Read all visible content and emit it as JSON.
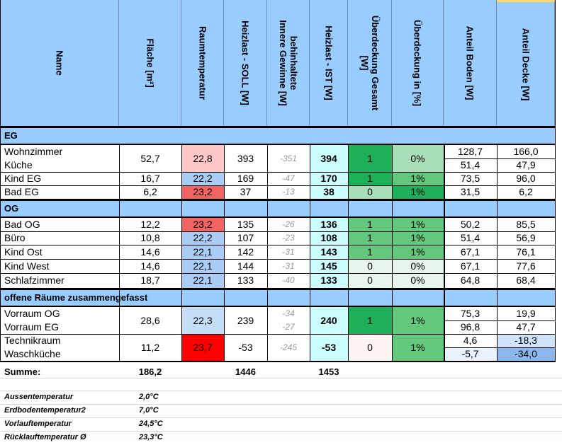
{
  "header": {
    "name": "Name",
    "flaeche": "Fläche [m²]",
    "raumtemperatur": "Raumtemperatur",
    "heizlast_soll": "Heizlast - SOLL [W]",
    "innere_gewinne_line1": "behinhaltete",
    "innere_gewinne_line2": "Innere Gewinne [W]",
    "heizlast_ist": "Heizlast - IST [W]",
    "ueberdeckung_gesamt_line1": "Überdeckung Gesamt",
    "ueberdeckung_gesamt_line2": "[W]",
    "ueberdeckung_prozent": "Überdeckung in [%]",
    "anteil_boden": "Anteil Boden [W]",
    "anteil_decke": "Anteil Decke [W]"
  },
  "sections": {
    "eg": "EG",
    "og": "OG",
    "offen": "offene Räume zusammengefasst"
  },
  "eg": {
    "wohnzimmer": {
      "name": "Wohnzimmer",
      "boden": "128,7",
      "decke": "166,0"
    },
    "kueche": {
      "name": "Küche",
      "boden": "51,4",
      "decke": "47,9"
    },
    "wk": {
      "flaeche": "52,7",
      "temp": "22,8",
      "soll": "393",
      "innere": "-351",
      "ist": "394",
      "ueb": "1",
      "pct": "0%"
    },
    "kind_eg": {
      "name": "Kind EG",
      "flaeche": "16,7",
      "temp": "22,2",
      "soll": "169",
      "innere": "-47",
      "ist": "170",
      "ueb": "1",
      "pct": "1%",
      "boden": "73,5",
      "decke": "96,0"
    },
    "bad_eg": {
      "name": "Bad EG",
      "flaeche": "6,2",
      "temp": "23,2",
      "soll": "37",
      "innere": "-13",
      "ist": "38",
      "ueb": "0",
      "pct": "1%",
      "boden": "31,5",
      "decke": "6,2"
    }
  },
  "og": [
    {
      "name": "Bad OG",
      "flaeche": "12,2",
      "temp": "23,2",
      "soll": "135",
      "innere": "-26",
      "ist": "136",
      "ueb": "1",
      "pct": "1%",
      "boden": "50,2",
      "decke": "85,5"
    },
    {
      "name": "Büro",
      "flaeche": "10,8",
      "temp": "22,2",
      "soll": "107",
      "innere": "-23",
      "ist": "108",
      "ueb": "1",
      "pct": "1%",
      "boden": "51,4",
      "decke": "56,9"
    },
    {
      "name": "Kind Ost",
      "flaeche": "14,6",
      "temp": "22,1",
      "soll": "142",
      "innere": "-31",
      "ist": "143",
      "ueb": "1",
      "pct": "1%",
      "boden": "67,1",
      "decke": "76,1"
    },
    {
      "name": "Kind West",
      "flaeche": "14,6",
      "temp": "22,1",
      "soll": "144",
      "innere": "-31",
      "ist": "145",
      "ueb": "0",
      "pct": "0%",
      "boden": "67,1",
      "decke": "77,6"
    },
    {
      "name": "Schlafzimmer",
      "flaeche": "18,7",
      "temp": "22,1",
      "soll": "133",
      "innere": "-40",
      "ist": "133",
      "ueb": "0",
      "pct": "0%",
      "boden": "64,8",
      "decke": "68,4"
    }
  ],
  "offen": {
    "vorraum_og": {
      "name": "Vorraum OG",
      "innere": "-34",
      "boden": "75,3",
      "decke": "19,9"
    },
    "vorraum_eg": {
      "name": "Vorraum EG",
      "innere": "-27",
      "boden": "96,8",
      "decke": "47,7"
    },
    "vorraum": {
      "flaeche": "28,6",
      "temp": "22,3",
      "soll": "239",
      "ist": "240",
      "ueb": "1",
      "pct": "1%"
    },
    "technikraum": {
      "name": "Technikraum",
      "boden": "4,6",
      "decke": "-18,3"
    },
    "waschkueche": {
      "name": "Waschküche",
      "boden": "-5,7",
      "decke": "-34,0"
    },
    "tw": {
      "flaeche": "11,2",
      "temp": "23,7",
      "soll": "-53",
      "innere": "-245",
      "ist": "-53",
      "ueb": "0",
      "pct": "1%"
    }
  },
  "summe": {
    "label": "Summe:",
    "flaeche": "186,2",
    "soll": "1446",
    "ist": "1453"
  },
  "footer": [
    {
      "label": "Aussentemperatur",
      "value": "2,0°C"
    },
    {
      "label": "Erdbodentemperatur2",
      "value": "7,0°C"
    },
    {
      "label": "Vorlauftemperatur",
      "value": "24,5°C"
    },
    {
      "label": "Rücklauftemperatur Ø",
      "value": "23,3°C"
    }
  ],
  "colors": {
    "header_blue": "#99ccff",
    "temp_red_strong": "#ff0000",
    "temp_red": "#f26464",
    "temp_pink": "#ffc7c7",
    "temp_blue": "#a9cdf5",
    "temp_blue_light": "#c5def8",
    "ist_cyan": "#ccffff",
    "green_strong": "#1db058",
    "green_mid": "#63c77c",
    "green_light": "#a9dfb8",
    "green_pale": "#e7f5ea"
  }
}
